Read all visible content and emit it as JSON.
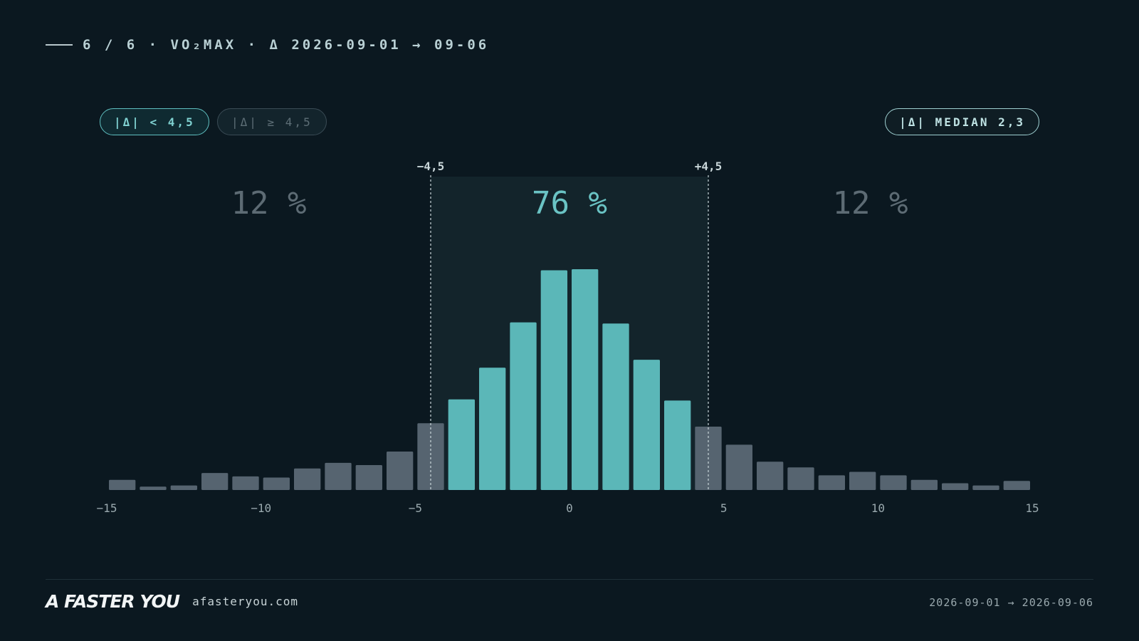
{
  "header": {
    "title": "6 / 6 · VO₂MAX · Δ 2026-09-01 → 09-06"
  },
  "pills": {
    "inside": "|Δ| < 4,5",
    "outside": "|Δ| ≥ 4,5",
    "median": "|Δ| MEDIAN 2,3"
  },
  "footer": {
    "brand": "A FASTER YOU",
    "url": "afasteryou.com",
    "date_range": "2026-09-01 → 2026-09-06"
  },
  "colors": {
    "inside": "#5bb7b8",
    "outside": "#566470",
    "band": "#13242b",
    "background": "#0b1820"
  },
  "chart_data": {
    "type": "bar",
    "x": [
      -15,
      -14,
      -13,
      -12,
      -11,
      -10,
      -9,
      -8,
      -7,
      -6,
      -5,
      -4,
      -3,
      -2,
      -1,
      0,
      1,
      2,
      3,
      4,
      5,
      6,
      7,
      8,
      9,
      10,
      11,
      12,
      13,
      14
    ],
    "values": [
      4.5,
      1.5,
      2,
      7.5,
      6,
      5.5,
      9.5,
      12,
      11,
      17,
      29.5,
      40,
      54,
      74,
      97,
      97.5,
      73.5,
      57.5,
      39.5,
      28,
      20,
      12.5,
      10,
      6.5,
      8,
      6.5,
      4.5,
      3,
      2,
      4
    ],
    "xlim": [
      -15,
      15
    ],
    "x_ticks": [
      -15,
      -10,
      -5,
      0,
      5,
      10,
      15
    ],
    "x_tick_labels": [
      "−15",
      "−10",
      "−5",
      "0",
      "5",
      "10",
      "15"
    ],
    "ymax": 100,
    "threshold": 4.5,
    "threshold_labels": [
      "−4,5",
      "+4,5"
    ],
    "segments": [
      {
        "label": "12 %",
        "position": "left"
      },
      {
        "label": "76 %",
        "position": "center"
      },
      {
        "label": "12 %",
        "position": "right"
      }
    ],
    "grid": false
  }
}
